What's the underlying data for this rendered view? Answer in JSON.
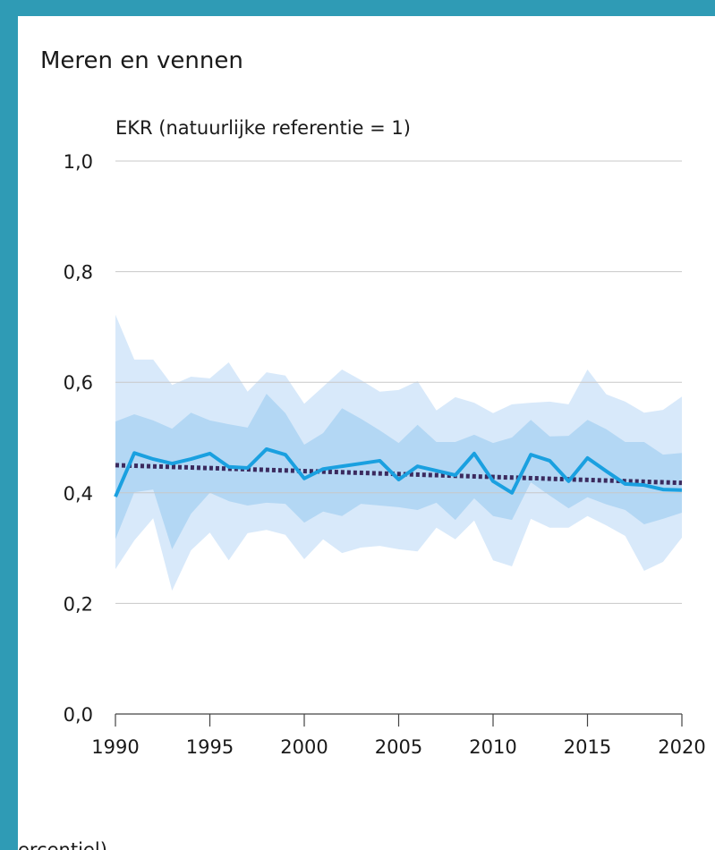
{
  "chart_data": {
    "type": "line",
    "title": "Meren en vennen",
    "y_label": "EKR (natuurlijke referentie = 1)",
    "footer_fragment": "ercentiel)",
    "x": [
      1990,
      1991,
      1992,
      1993,
      1994,
      1995,
      1996,
      1997,
      1998,
      1999,
      2000,
      2001,
      2002,
      2003,
      2004,
      2005,
      2006,
      2007,
      2008,
      2009,
      2010,
      2011,
      2012,
      2013,
      2014,
      2015,
      2016,
      2017,
      2018,
      2019,
      2020
    ],
    "series": [
      {
        "color": "#1aa0e0",
        "values": [
          0.393,
          0.472,
          0.461,
          0.453,
          0.461,
          0.471,
          0.447,
          0.445,
          0.479,
          0.469,
          0.426,
          0.443,
          0.448,
          0.453,
          0.458,
          0.424,
          0.448,
          0.44,
          0.432,
          0.471,
          0.421,
          0.4,
          0.469,
          0.458,
          0.421,
          0.463,
          0.439,
          0.416,
          0.414,
          0.406,
          0.405
        ]
      },
      {
        "color": "#3b2a5e",
        "dashed": true,
        "x": [
          1990,
          2020
        ],
        "values": [
          0.45,
          0.418
        ]
      }
    ],
    "bands": [
      {
        "color": "#d8e9fa",
        "upper": [
          0.722,
          0.641,
          0.641,
          0.595,
          0.61,
          0.607,
          0.636,
          0.583,
          0.618,
          0.612,
          0.561,
          0.592,
          0.623,
          0.604,
          0.583,
          0.586,
          0.602,
          0.549,
          0.573,
          0.563,
          0.544,
          0.56,
          0.563,
          0.565,
          0.56,
          0.623,
          0.578,
          0.565,
          0.545,
          0.55,
          0.574
        ],
        "lower": [
          0.262,
          0.314,
          0.354,
          0.223,
          0.296,
          0.328,
          0.278,
          0.327,
          0.333,
          0.324,
          0.28,
          0.316,
          0.291,
          0.301,
          0.304,
          0.298,
          0.294,
          0.337,
          0.316,
          0.35,
          0.278,
          0.267,
          0.353,
          0.337,
          0.337,
          0.358,
          0.341,
          0.322,
          0.259,
          0.275,
          0.319
        ]
      },
      {
        "color": "#b3d7f4",
        "upper": [
          0.529,
          0.542,
          0.531,
          0.516,
          0.545,
          0.531,
          0.524,
          0.518,
          0.579,
          0.544,
          0.487,
          0.508,
          0.553,
          0.534,
          0.513,
          0.49,
          0.523,
          0.492,
          0.492,
          0.505,
          0.49,
          0.5,
          0.532,
          0.502,
          0.503,
          0.532,
          0.515,
          0.492,
          0.492,
          0.469,
          0.472
        ],
        "lower": [
          0.316,
          0.401,
          0.406,
          0.298,
          0.362,
          0.4,
          0.385,
          0.377,
          0.382,
          0.38,
          0.346,
          0.366,
          0.358,
          0.38,
          0.377,
          0.374,
          0.369,
          0.382,
          0.351,
          0.39,
          0.358,
          0.351,
          0.419,
          0.395,
          0.372,
          0.392,
          0.379,
          0.369,
          0.343,
          0.353,
          0.364
        ]
      }
    ],
    "xlim": [
      1990,
      2020
    ],
    "ylim": [
      0,
      1
    ],
    "xticks": [
      1990,
      1995,
      2000,
      2005,
      2010,
      2015,
      2020
    ],
    "yticks": [
      {
        "value": 0,
        "label": "0,0"
      },
      {
        "value": 0.2,
        "label": "0,2"
      },
      {
        "value": 0.4,
        "label": "0,4"
      },
      {
        "value": 0.6,
        "label": "0,6"
      },
      {
        "value": 0.8,
        "label": "0,8"
      },
      {
        "value": 1,
        "label": "1,0"
      }
    ],
    "grid": true
  }
}
